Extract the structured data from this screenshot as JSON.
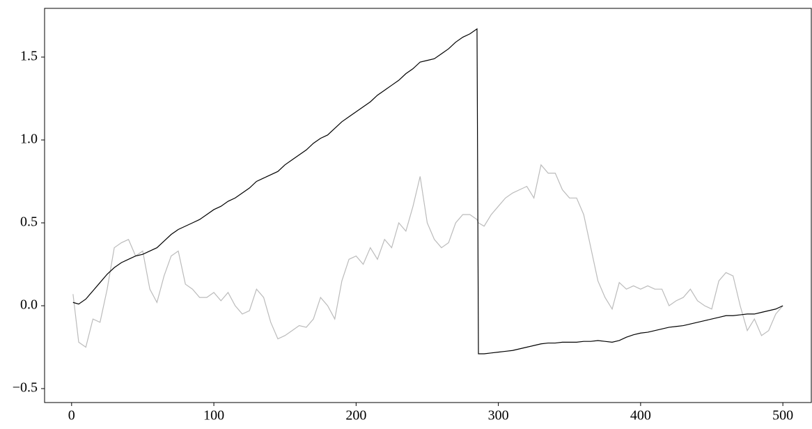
{
  "chart_data": {
    "type": "line",
    "x": [
      1,
      5,
      10,
      15,
      20,
      25,
      30,
      35,
      40,
      45,
      50,
      55,
      60,
      65,
      70,
      75,
      80,
      85,
      90,
      95,
      100,
      105,
      110,
      115,
      120,
      125,
      130,
      135,
      140,
      145,
      150,
      155,
      160,
      165,
      170,
      175,
      180,
      185,
      190,
      195,
      200,
      205,
      210,
      215,
      220,
      225,
      230,
      235,
      240,
      245,
      250,
      255,
      260,
      265,
      270,
      275,
      280,
      285,
      286,
      290,
      295,
      300,
      305,
      310,
      315,
      320,
      325,
      330,
      335,
      340,
      345,
      350,
      355,
      360,
      365,
      370,
      375,
      380,
      385,
      390,
      395,
      400,
      405,
      410,
      415,
      420,
      425,
      430,
      435,
      440,
      445,
      450,
      455,
      460,
      465,
      470,
      475,
      480,
      485,
      490,
      495,
      500
    ],
    "series": [
      {
        "color": "#bbbbbb",
        "values": [
          0.07,
          -0.22,
          -0.25,
          -0.08,
          -0.1,
          0.1,
          0.35,
          0.38,
          0.4,
          0.3,
          0.33,
          0.1,
          0.02,
          0.18,
          0.3,
          0.33,
          0.13,
          0.1,
          0.05,
          0.05,
          0.08,
          0.03,
          0.08,
          0.0,
          -0.05,
          -0.03,
          0.1,
          0.05,
          -0.1,
          -0.2,
          -0.18,
          -0.15,
          -0.12,
          -0.13,
          -0.08,
          0.05,
          0.0,
          -0.08,
          0.15,
          0.28,
          0.3,
          0.25,
          0.35,
          0.28,
          0.4,
          0.35,
          0.5,
          0.45,
          0.6,
          0.78,
          0.5,
          0.4,
          0.35,
          0.38,
          0.5,
          0.55,
          0.55,
          0.52,
          0.5,
          0.48,
          0.55,
          0.6,
          0.65,
          0.68,
          0.7,
          0.72,
          0.65,
          0.85,
          0.8,
          0.8,
          0.7,
          0.65,
          0.65,
          0.55,
          0.35,
          0.15,
          0.05,
          -0.02,
          0.14,
          0.1,
          0.12,
          0.1,
          0.12,
          0.1,
          0.1,
          0.0,
          0.03,
          0.05,
          0.1,
          0.03,
          0.0,
          -0.02,
          0.15,
          0.2,
          0.18,
          0.0,
          -0.15,
          -0.08,
          -0.18,
          -0.15,
          -0.05,
          0.0
        ]
      },
      {
        "color": "#000000",
        "values": [
          0.02,
          0.01,
          0.04,
          0.09,
          0.14,
          0.19,
          0.23,
          0.26,
          0.28,
          0.3,
          0.31,
          0.33,
          0.35,
          0.39,
          0.43,
          0.46,
          0.48,
          0.5,
          0.52,
          0.55,
          0.58,
          0.6,
          0.63,
          0.65,
          0.68,
          0.71,
          0.75,
          0.77,
          0.79,
          0.81,
          0.85,
          0.88,
          0.91,
          0.94,
          0.98,
          1.01,
          1.03,
          1.07,
          1.11,
          1.14,
          1.17,
          1.2,
          1.23,
          1.27,
          1.3,
          1.33,
          1.36,
          1.4,
          1.43,
          1.47,
          1.48,
          1.49,
          1.52,
          1.55,
          1.59,
          1.62,
          1.64,
          1.67,
          -0.29,
          -0.29,
          -0.285,
          -0.28,
          -0.275,
          -0.27,
          -0.26,
          -0.25,
          -0.24,
          -0.23,
          -0.225,
          -0.225,
          -0.22,
          -0.22,
          -0.22,
          -0.215,
          -0.215,
          -0.21,
          -0.215,
          -0.22,
          -0.21,
          -0.19,
          -0.175,
          -0.165,
          -0.16,
          -0.15,
          -0.14,
          -0.13,
          -0.125,
          -0.12,
          -0.11,
          -0.1,
          -0.09,
          -0.08,
          -0.07,
          -0.06,
          -0.06,
          -0.055,
          -0.05,
          -0.05,
          -0.04,
          -0.03,
          -0.02,
          0.0
        ]
      }
    ],
    "xlim": [
      -19,
      520
    ],
    "ylim": [
      -0.584,
      1.794
    ],
    "xticks": [
      0,
      100,
      200,
      300,
      400,
      500
    ],
    "yticks": [
      {
        "value": -0.5,
        "label": "−0.5"
      },
      {
        "value": 0,
        "label": "0.0"
      },
      0.5,
      {
        "value": 1,
        "label": "1.0"
      },
      1.5
    ]
  }
}
